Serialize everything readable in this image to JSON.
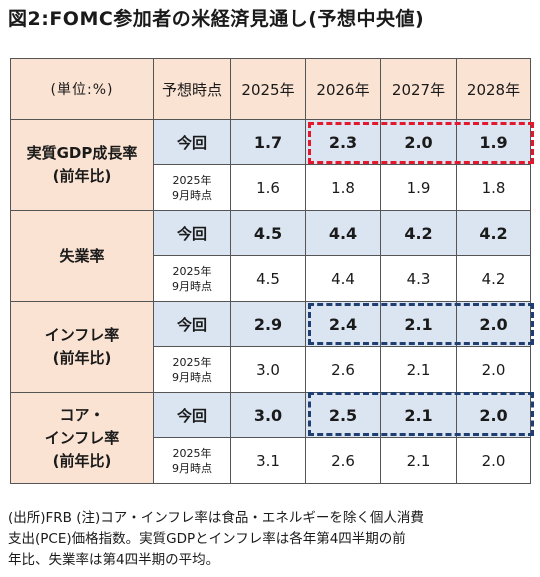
{
  "title": "図2:FOMC参加者の米経済見通し(予想中央値)",
  "table": {
    "header": {
      "unit": "(単位:%)",
      "timing": "予想時点",
      "years": [
        "2025年",
        "2026年",
        "2027年",
        "2028年"
      ]
    },
    "current_label": "今回",
    "previous_label_line1": "2025年",
    "previous_label_line2": "9月時点",
    "groups": [
      {
        "label_lines": [
          "実質GDP成長率",
          "(前年比)"
        ],
        "current": [
          "1.7",
          "2.3",
          "2.0",
          "1.9"
        ],
        "previous": [
          "1.6",
          "1.8",
          "1.9",
          "1.8"
        ]
      },
      {
        "label_lines": [
          "失業率"
        ],
        "current": [
          "4.5",
          "4.4",
          "4.2",
          "4.2"
        ],
        "previous": [
          "4.5",
          "4.4",
          "4.3",
          "4.2"
        ]
      },
      {
        "label_lines": [
          "インフレ率",
          "(前年比)"
        ],
        "current": [
          "2.9",
          "2.4",
          "2.1",
          "2.0"
        ],
        "previous": [
          "3.0",
          "2.6",
          "2.1",
          "2.0"
        ]
      },
      {
        "label_lines": [
          "コア・",
          "インフレ率",
          "(前年比)"
        ],
        "current": [
          "3.0",
          "2.5",
          "2.1",
          "2.0"
        ],
        "previous": [
          "3.1",
          "2.6",
          "2.1",
          "2.0"
        ]
      }
    ],
    "highlight_colors": {
      "revised_up_down_red": "#e3182d",
      "revised_blue": "#1f3f73"
    },
    "colors": {
      "header_bg": "#fbe3d3",
      "current_row_bg": "#dbe5f1"
    }
  },
  "note": {
    "line1": "(出所)FRB (注)コア・インフレ率は食品・エネルギーを除く個人消費",
    "line2": "支出(PCE)価格指数。実質GDPとインフレ率は各年第4四半期の前",
    "line3": "年比、失業率は第4四半期の平均。"
  }
}
